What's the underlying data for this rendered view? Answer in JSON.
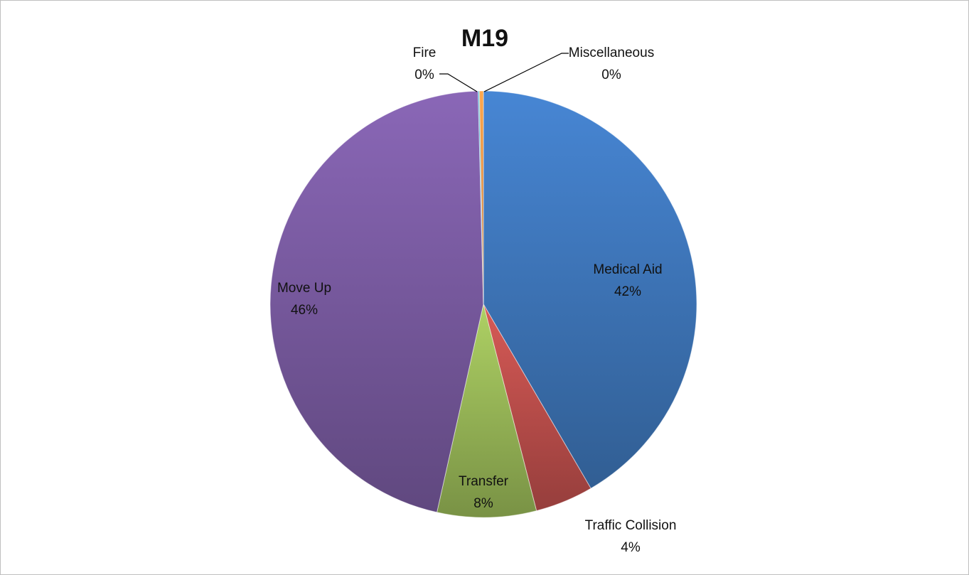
{
  "chart_data": {
    "type": "pie",
    "title": "M19",
    "categories": [
      "Medical Aid",
      "Traffic Collision",
      "Transfer",
      "Move Up",
      "Fire",
      "Miscellaneous"
    ],
    "values": [
      41.6,
      4.4,
      7.5,
      46.1,
      0.1,
      0.3
    ],
    "value_labels": [
      "42%",
      "4%",
      "8%",
      "46%",
      "0%",
      "0%"
    ],
    "colors": [
      "#3f78bd",
      "#c0504d",
      "#9bbb59",
      "#7b5ca3",
      "#4bacc6",
      "#f79646"
    ]
  }
}
